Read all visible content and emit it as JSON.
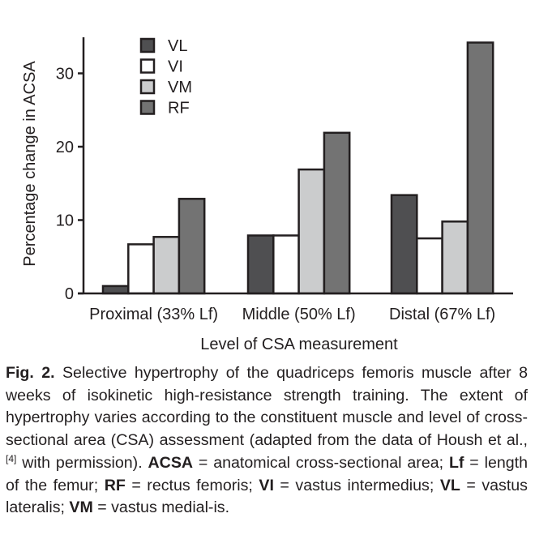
{
  "chart_data": {
    "type": "bar",
    "title": "",
    "xlabel": "Level of CSA measurement",
    "ylabel": "Percentage change in ACSA",
    "ylim": [
      0,
      35
    ],
    "yticks": [
      0,
      10,
      20,
      30
    ],
    "grid": false,
    "legend_position": "top-left",
    "categories": [
      "Proximal (33% Lf)",
      "Middle (50% Lf)",
      "Distal (67% Lf)"
    ],
    "series": [
      {
        "name": "VL",
        "color": "#4f4f51",
        "values": [
          1.0,
          7.9,
          13.4
        ]
      },
      {
        "name": "VI",
        "color": "#ffffff",
        "values": [
          6.7,
          7.9,
          7.5
        ]
      },
      {
        "name": "VM",
        "color": "#cbcccd",
        "values": [
          7.7,
          16.9,
          9.8
        ]
      },
      {
        "name": "RF",
        "color": "#737373",
        "values": [
          12.9,
          21.9,
          34.2
        ]
      }
    ],
    "outline_color": "#231f20"
  },
  "caption": {
    "label": "Fig. 2.",
    "segments": [
      {
        "t": " Selective hypertrophy of the quadriceps femoris muscle after 8 weeks of isokinetic high-resistance strength training. The extent of hypertrophy varies according to the constituent muscle and level of cross-sectional area (CSA) assessment (adapted from the data of Housh et al.,",
        "b": false
      },
      {
        "sup": "[4]"
      },
      {
        "t": " with permission). ",
        "b": false
      },
      {
        "t": "ACSA",
        "b": true
      },
      {
        "t": " = anatomical cross-sectional area; ",
        "b": false
      },
      {
        "t": "Lf",
        "b": true
      },
      {
        "t": " = length of the femur; ",
        "b": false
      },
      {
        "t": "RF",
        "b": true
      },
      {
        "t": " = rectus femoris; ",
        "b": false
      },
      {
        "t": "VI",
        "b": true
      },
      {
        "t": " = vastus intermedius; ",
        "b": false
      },
      {
        "t": "VL",
        "b": true
      },
      {
        "t": " = vastus lateralis; ",
        "b": false
      },
      {
        "t": "VM",
        "b": true
      },
      {
        "t": " = vastus medial-is.",
        "b": false
      }
    ]
  }
}
